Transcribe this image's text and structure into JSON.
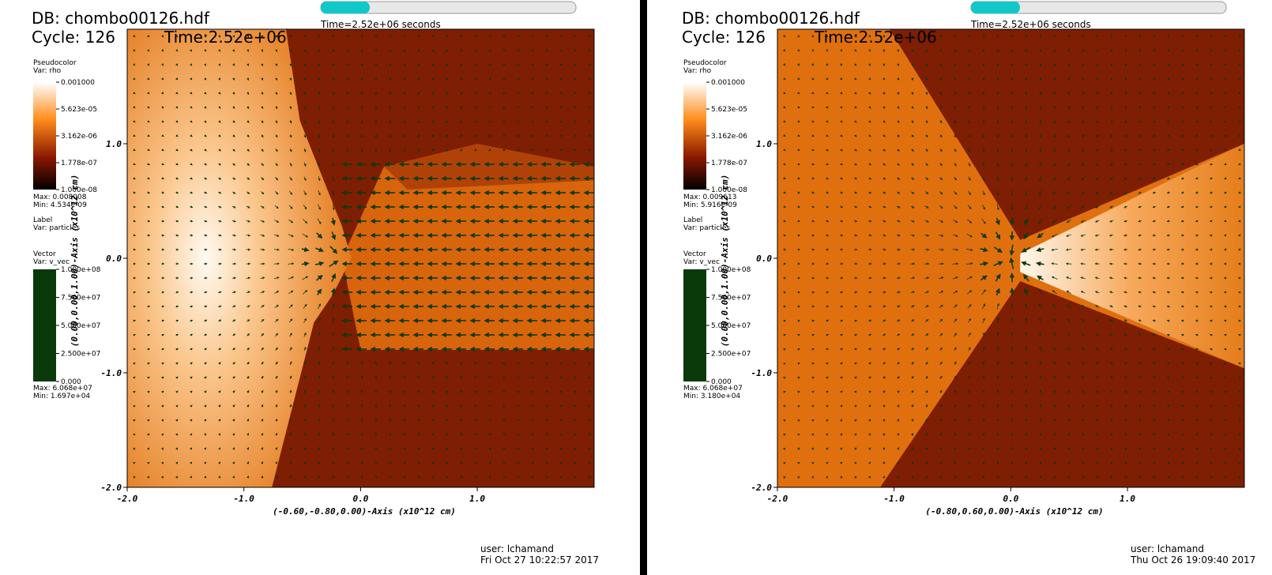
{
  "panels": [
    {
      "db": "DB: chombo00126.hdf",
      "cycle": "Cycle: 126",
      "time": "Time:2.52e+06",
      "slider": "Time=2.52e+06 seconds",
      "pseudocolor": {
        "title": "Pseudocolor",
        "var": "Var: rho",
        "ticks": [
          "0.001000",
          "5.623e-05",
          "3.162e-06",
          "1.778e-07",
          "1.000e-08"
        ],
        "max": "Max: 0.008008",
        "min": "Min: 4.534e-09"
      },
      "label": {
        "title": "Label",
        "var": "Var: particles"
      },
      "vector": {
        "title": "Vector",
        "var": "Var: v_vec",
        "ticks": [
          "1.000e+08",
          "7.500e+07",
          "5.000e+07",
          "2.500e+07",
          "0.000"
        ],
        "max": "Max: 6.068e+07",
        "min": "Min: 1.697e+04"
      },
      "xticks": [
        "-2.0",
        "-1.0",
        "0.0",
        "1.0"
      ],
      "yticks": [
        "1.0",
        "0.0",
        "-1.0",
        "-2.0"
      ],
      "xlabel": "(-0.60,-0.80,0.00)-Axis (x10^12 cm)",
      "ylabel": "(0.00,0.00,1.00)-Axis (x10^12 cm)",
      "user": "user: lchamand",
      "date": "Fri Oct 27 10:22:57 2017"
    },
    {
      "db": "DB: chombo00126.hdf",
      "cycle": "Cycle: 126",
      "time": "Time:2.52e+06",
      "slider": "Time=2.52e+06 seconds",
      "pseudocolor": {
        "title": "Pseudocolor",
        "var": "Var: rho",
        "ticks": [
          "0.001000",
          "5.623e-05",
          "3.162e-06",
          "1.778e-07",
          "1.000e-08"
        ],
        "max": "Max: 0.009613",
        "min": "Min: 5.916e-09"
      },
      "label": {
        "title": "Label",
        "var": "Var: particles"
      },
      "vector": {
        "title": "Vector",
        "var": "Var: v_vec",
        "ticks": [
          "1.000e+08",
          "7.500e+07",
          "5.000e+07",
          "2.500e+07",
          "0.000"
        ],
        "max": "Max: 6.068e+07",
        "min": "Min: 3.180e+04"
      },
      "xticks": [
        "-2.0",
        "-1.0",
        "0.0",
        "1.0"
      ],
      "yticks": [
        "1.0",
        "0.0",
        "-1.0",
        "-2.0"
      ],
      "xlabel": "(-0.80,0.60,0.00)-Axis (x10^12 cm)",
      "ylabel": "(0.00,0.00,1.00)-Axis (x10^12 cm)",
      "user": "user: lchamand",
      "date": "Thu Oct 26 19:09:40 2017"
    }
  ]
}
